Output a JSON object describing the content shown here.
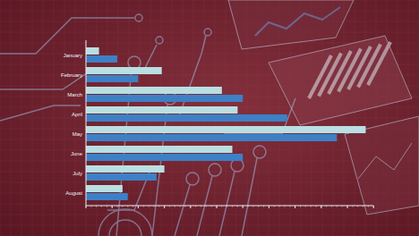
{
  "chart_data": {
    "type": "bar",
    "orientation": "horizontal",
    "categories": [
      "January",
      "February",
      "March",
      "April",
      "May",
      "June",
      "July",
      "August"
    ],
    "series": [
      {
        "color": "#b9dfe2",
        "values": [
          5,
          29,
          52,
          58,
          107,
          56,
          30,
          14
        ]
      },
      {
        "color": "#3d80c6",
        "values": [
          12,
          20,
          60,
          77,
          96,
          60,
          27,
          16
        ]
      }
    ],
    "xlim": [
      0,
      110
    ],
    "xticks": [
      0,
      10,
      20,
      30,
      40,
      50,
      60,
      70,
      80,
      90,
      100,
      110
    ],
    "grid": false,
    "tick_labels": "y"
  }
}
